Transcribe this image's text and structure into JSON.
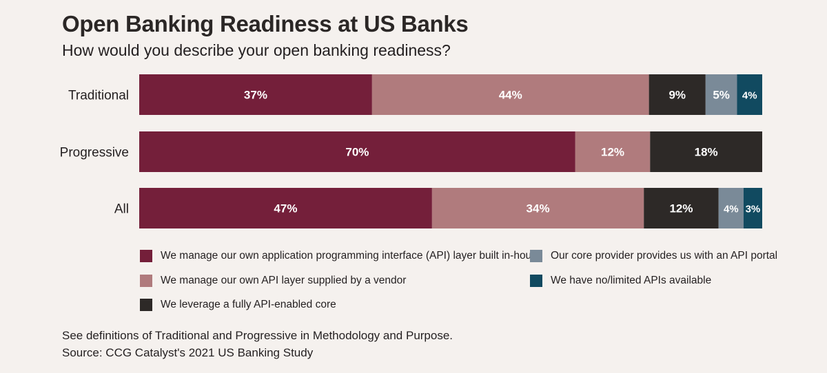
{
  "header": {
    "title": "Open Banking Readiness at US Banks",
    "subtitle": "How would you describe your open banking readiness?"
  },
  "colors": {
    "in_house": "#741f3a",
    "vendor": "#b07b7d",
    "api_core": "#2d2927",
    "core_portal": "#7a8a98",
    "no_api": "#114a60"
  },
  "chart_data": {
    "type": "bar",
    "orientation": "horizontal",
    "stacked": true,
    "normalized": true,
    "categories": [
      "Traditional",
      "Progressive",
      "All"
    ],
    "series": [
      {
        "name": "We manage our own application programming interface (API) layer built in-house",
        "values": [
          37,
          70,
          47
        ],
        "color": "#741f3a"
      },
      {
        "name": "We manage our own API layer supplied by a vendor",
        "values": [
          44,
          12,
          34
        ],
        "color": "#b07b7d"
      },
      {
        "name": "We leverage a fully API-enabled core",
        "values": [
          9,
          18,
          12
        ],
        "color": "#2d2927"
      },
      {
        "name": "Our core provider provides us with an API portal",
        "values": [
          5,
          0,
          4
        ],
        "color": "#7a8a98"
      },
      {
        "name": "We have no/limited APIs available",
        "values": [
          4,
          0,
          3
        ],
        "color": "#114a60"
      }
    ],
    "value_suffix": "%",
    "xlim": [
      0,
      100
    ],
    "grid": false,
    "legend_position": "bottom"
  },
  "footnotes": [
    "See definitions of Traditional and Progressive in Methodology and Purpose.",
    "Source: CCG Catalyst's 2021 US Banking Study"
  ]
}
